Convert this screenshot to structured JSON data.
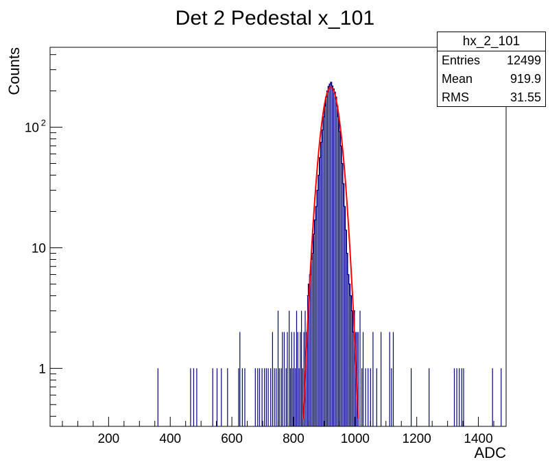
{
  "title": "Det 2 Pedestal x_101",
  "stats": {
    "name": "hx_2_101",
    "rows": [
      {
        "label": "Entries",
        "value": "12499"
      },
      {
        "label": "Mean",
        "value": "919.9"
      },
      {
        "label": "RMS",
        "value": "31.55"
      }
    ]
  },
  "colors": {
    "histogram": "#000080",
    "fit": "#ff0000",
    "axis": "#000000"
  },
  "chart_data": {
    "type": "histogram",
    "title": "Det 2 Pedestal x_101",
    "xlabel": "ADC",
    "ylabel": "Counts",
    "xlim": [
      10,
      1490
    ],
    "ylim": [
      0.33,
      460
    ],
    "y_scale": "log",
    "x_ticks": [
      {
        "value": 200,
        "label": "200"
      },
      {
        "value": 400,
        "label": "400"
      },
      {
        "value": 600,
        "label": "600"
      },
      {
        "value": 800,
        "label": "800"
      },
      {
        "value": 1000,
        "label": "1000"
      },
      {
        "value": 1200,
        "label": "1200"
      },
      {
        "value": 1400,
        "label": "1400"
      }
    ],
    "y_ticks": [
      {
        "value": 1,
        "label": "1"
      },
      {
        "value": 10,
        "label": "10"
      },
      {
        "value": 100,
        "label": "10",
        "exponent": "2"
      }
    ],
    "bins": [
      [
        360,
        1
      ],
      [
        466,
        1
      ],
      [
        476,
        1
      ],
      [
        486,
        1
      ],
      [
        538,
        1
      ],
      [
        552,
        1
      ],
      [
        566,
        1
      ],
      [
        586,
        1
      ],
      [
        622,
        1
      ],
      [
        626,
        2
      ],
      [
        634,
        1
      ],
      [
        642,
        1
      ],
      [
        676,
        1
      ],
      [
        684,
        1
      ],
      [
        690,
        1
      ],
      [
        698,
        1
      ],
      [
        706,
        1
      ],
      [
        712,
        1
      ],
      [
        718,
        1
      ],
      [
        726,
        1
      ],
      [
        732,
        2
      ],
      [
        738,
        1
      ],
      [
        744,
        1
      ],
      [
        750,
        3
      ],
      [
        754,
        1
      ],
      [
        760,
        1
      ],
      [
        764,
        2
      ],
      [
        770,
        2
      ],
      [
        776,
        1
      ],
      [
        780,
        2
      ],
      [
        786,
        3
      ],
      [
        790,
        1
      ],
      [
        794,
        2
      ],
      [
        798,
        1
      ],
      [
        802,
        2
      ],
      [
        806,
        1
      ],
      [
        810,
        3
      ],
      [
        814,
        2
      ],
      [
        818,
        1
      ],
      [
        822,
        2
      ],
      [
        826,
        3
      ],
      [
        830,
        1
      ],
      [
        834,
        2
      ],
      [
        838,
        3
      ],
      [
        842,
        2
      ],
      [
        846,
        4
      ],
      [
        850,
        5
      ],
      [
        854,
        6
      ],
      [
        858,
        8
      ],
      [
        862,
        9
      ],
      [
        866,
        13
      ],
      [
        870,
        17
      ],
      [
        874,
        22
      ],
      [
        878,
        30
      ],
      [
        882,
        40
      ],
      [
        886,
        56
      ],
      [
        890,
        75
      ],
      [
        894,
        95
      ],
      [
        898,
        122
      ],
      [
        902,
        150
      ],
      [
        906,
        178
      ],
      [
        910,
        200
      ],
      [
        914,
        218
      ],
      [
        918,
        228
      ],
      [
        922,
        236
      ],
      [
        926,
        220
      ],
      [
        930,
        208
      ],
      [
        934,
        196
      ],
      [
        938,
        178
      ],
      [
        942,
        150
      ],
      [
        946,
        122
      ],
      [
        950,
        92
      ],
      [
        954,
        70
      ],
      [
        958,
        50
      ],
      [
        962,
        34
      ],
      [
        966,
        22
      ],
      [
        970,
        14
      ],
      [
        974,
        9
      ],
      [
        978,
        6
      ],
      [
        982,
        5
      ],
      [
        986,
        4
      ],
      [
        990,
        3
      ],
      [
        994,
        2
      ],
      [
        998,
        3
      ],
      [
        1002,
        2
      ],
      [
        1006,
        2
      ],
      [
        1010,
        2
      ],
      [
        1016,
        3
      ],
      [
        1022,
        1
      ],
      [
        1026,
        2
      ],
      [
        1034,
        1
      ],
      [
        1042,
        1
      ],
      [
        1050,
        1
      ],
      [
        1058,
        2
      ],
      [
        1070,
        1
      ],
      [
        1084,
        2
      ],
      [
        1112,
        2
      ],
      [
        1118,
        1
      ],
      [
        1124,
        2
      ],
      [
        1182,
        1
      ],
      [
        1240,
        1
      ],
      [
        1322,
        1
      ],
      [
        1330,
        1
      ],
      [
        1338,
        1
      ],
      [
        1346,
        1
      ],
      [
        1352,
        1
      ],
      [
        1446,
        1
      ],
      [
        1474,
        1
      ]
    ],
    "fit": {
      "function": "gaus",
      "constant": 215,
      "mean": 921,
      "sigma": 25
    }
  }
}
